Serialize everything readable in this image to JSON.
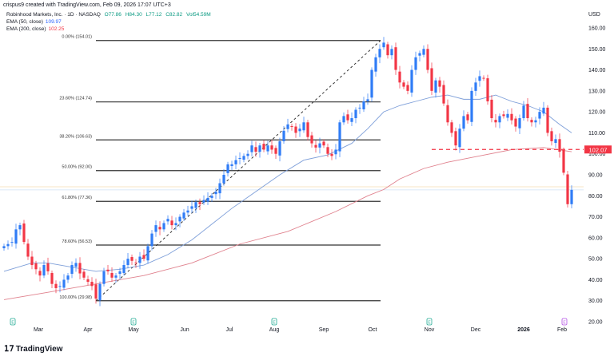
{
  "header": {
    "credit": "crispus9 created with TradingView.com, Feb 09, 2026 17:07 UTC+3"
  },
  "legend": {
    "symbol": "Robinhood Markets, Inc. · 1D · NASDAQ",
    "open": "O77.86",
    "high": "H84.30",
    "low": "L77.12",
    "close": "C82.82",
    "volume": "Vol54.59M",
    "ema50_label": "EMA (50, close)",
    "ema50_value": "109.97",
    "ema200_label": "EMA (200, close)",
    "ema200_value": "102.25"
  },
  "logo": "TradingView",
  "chart_data": {
    "type": "candlestick",
    "currency": "USD",
    "ylim": [
      20,
      160
    ],
    "y_ticks": [
      "160.00",
      "150.00",
      "140.00",
      "130.00",
      "120.00",
      "110.00",
      "100.00",
      "90.00",
      "80.00",
      "70.00",
      "60.00",
      "50.00",
      "40.00",
      "30.00",
      "20.00"
    ],
    "x_ticks": [
      "Mar",
      "Apr",
      "May",
      "Jun",
      "Jul",
      "Aug",
      "Sep",
      "Oct",
      "Nov",
      "Dec",
      "2026",
      "Feb"
    ],
    "colors": {
      "up": "#2f7cf6",
      "down": "#f23645",
      "ema50": "#7e9fd9",
      "ema200": "#e0828e",
      "fib": "#333333",
      "support": "#f23645"
    },
    "closes": [
      56,
      57,
      58,
      64,
      66,
      58,
      51,
      47,
      45,
      42,
      47,
      44,
      38,
      36,
      37,
      40,
      42,
      47,
      48,
      43,
      41,
      39,
      37,
      31,
      38,
      44,
      44,
      41,
      42,
      44,
      47,
      50,
      49,
      48,
      51,
      50,
      56,
      62,
      66,
      64,
      67,
      69,
      66,
      67,
      70,
      72,
      73,
      75,
      77,
      76,
      78,
      79,
      80,
      82,
      86,
      90,
      95,
      95,
      97,
      98,
      99,
      100,
      104,
      101,
      104,
      102,
      104,
      102,
      100,
      106,
      111,
      114,
      113,
      110,
      112,
      115,
      108,
      105,
      103,
      105,
      104,
      100,
      99,
      102,
      115,
      118,
      116,
      117,
      121,
      122,
      125,
      126,
      140,
      146,
      150,
      153,
      147,
      150,
      140,
      134,
      132,
      130,
      140,
      146,
      148,
      150,
      140,
      130,
      135,
      132,
      124,
      115,
      110,
      104,
      112,
      118,
      116,
      130,
      134,
      137,
      136,
      125,
      117,
      115,
      118,
      118,
      119,
      116,
      113,
      117,
      123,
      117,
      115,
      116,
      120,
      122,
      110,
      106,
      107,
      101,
      91,
      76,
      82.82
    ],
    "ema50": [
      [
        0,
        44
      ],
      [
        7,
        48
      ],
      [
        11,
        48
      ],
      [
        17,
        46
      ],
      [
        23,
        44
      ],
      [
        29,
        45
      ],
      [
        35,
        47
      ],
      [
        41,
        52
      ],
      [
        47,
        59
      ],
      [
        51,
        65
      ],
      [
        57,
        74
      ],
      [
        63,
        82
      ],
      [
        69,
        90
      ],
      [
        75,
        97
      ],
      [
        81,
        99.5
      ],
      [
        87,
        105
      ],
      [
        91,
        112
      ],
      [
        95,
        120
      ],
      [
        99,
        123
      ],
      [
        103,
        125
      ],
      [
        107,
        127
      ],
      [
        111,
        128
      ],
      [
        115,
        126
      ],
      [
        119,
        126
      ],
      [
        123,
        128
      ],
      [
        127,
        125
      ],
      [
        131,
        123
      ],
      [
        135,
        120
      ],
      [
        139,
        114
      ],
      [
        142,
        110
      ]
    ],
    "ema200": [
      [
        0,
        30.5
      ],
      [
        11,
        34
      ],
      [
        23,
        38
      ],
      [
        35,
        42
      ],
      [
        47,
        48
      ],
      [
        59,
        57
      ],
      [
        71,
        63
      ],
      [
        83,
        72.5
      ],
      [
        91,
        80
      ],
      [
        95,
        83
      ],
      [
        99,
        88
      ],
      [
        105,
        93
      ],
      [
        111,
        96
      ],
      [
        119,
        99
      ],
      [
        127,
        102
      ],
      [
        135,
        103
      ],
      [
        142,
        101
      ]
    ],
    "fib_levels": [
      {
        "label": "0.00% (154.01)",
        "price": 154.01
      },
      {
        "label": "23.60% (124.74)",
        "price": 124.74
      },
      {
        "label": "38.20% (106.63)",
        "price": 106.63
      },
      {
        "label": "50.00% (92.00)",
        "price": 92.0
      },
      {
        "label": "61.80% (77.36)",
        "price": 77.36
      },
      {
        "label": "78.60% (56.53)",
        "price": 56.53
      },
      {
        "label": "100.00% (29.98)",
        "price": 29.98
      }
    ],
    "support": {
      "price": 102.07,
      "label": "102.07"
    },
    "last_price": 82.82,
    "earnings_marker": "E"
  }
}
